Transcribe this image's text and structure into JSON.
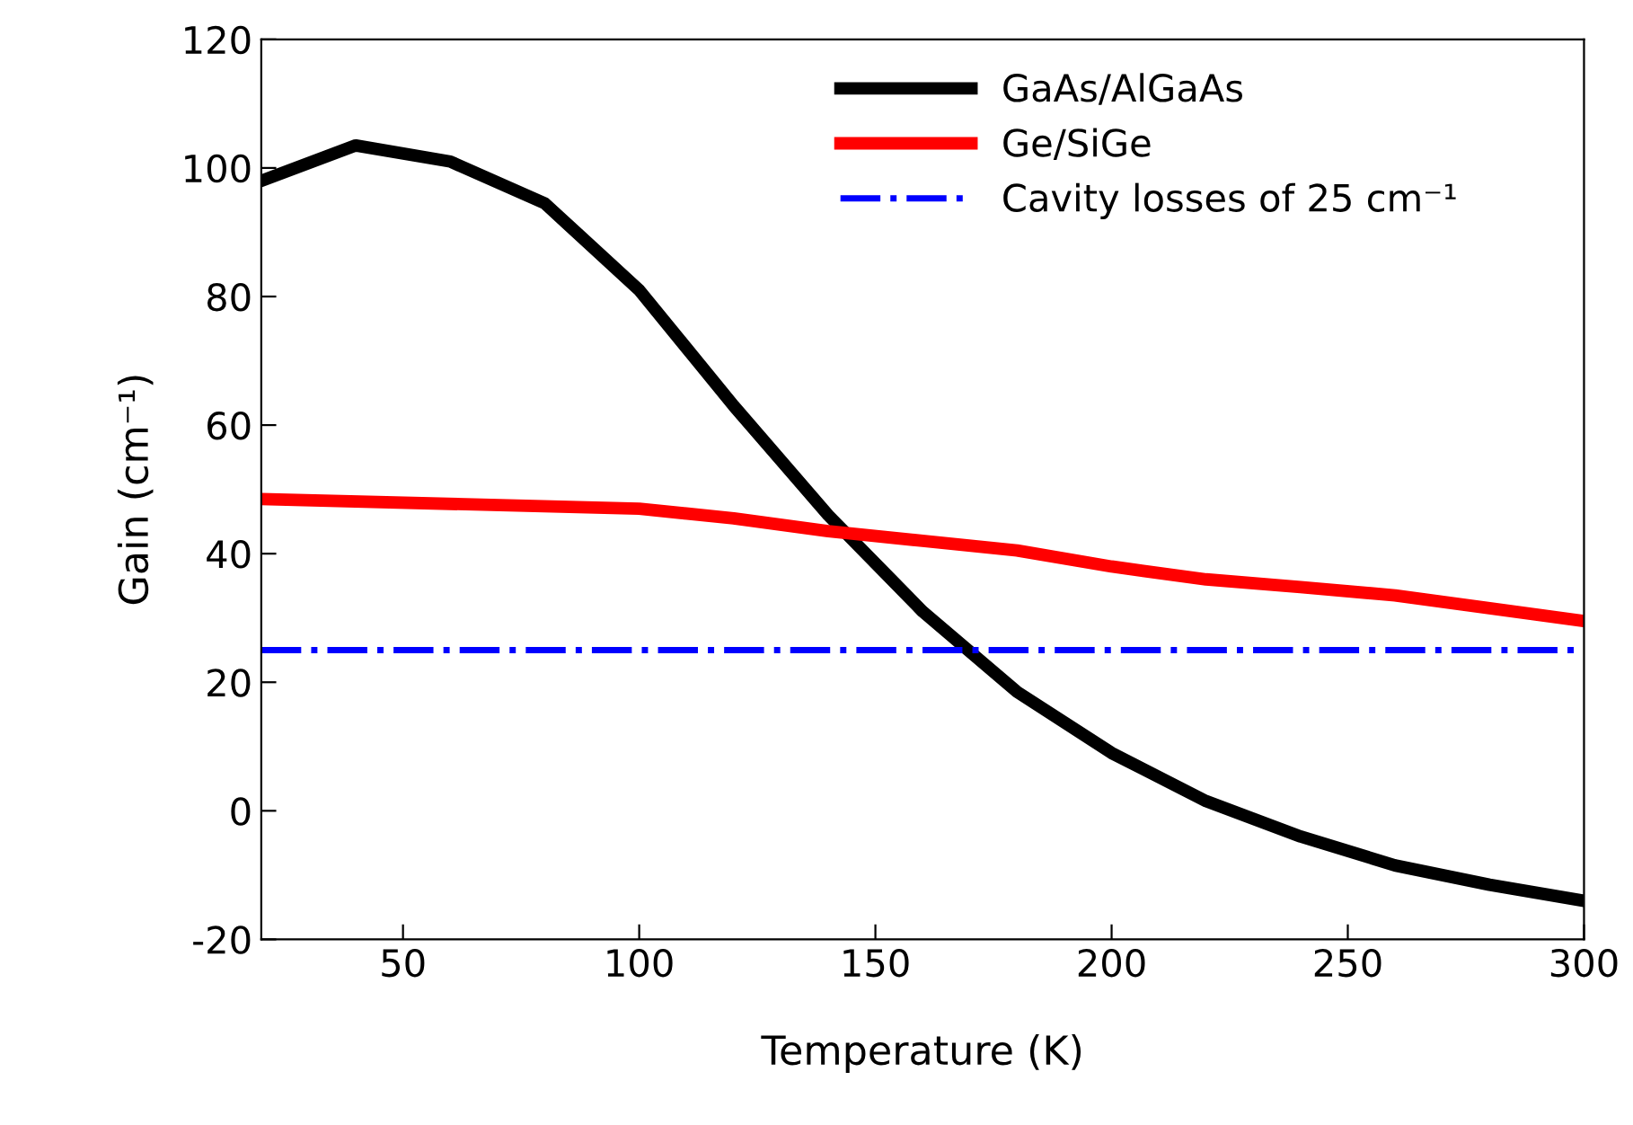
{
  "chart_data": {
    "type": "line",
    "xlabel": "Temperature (K)",
    "ylabel": "Gain (cm⁻¹)",
    "xlim": [
      20,
      300
    ],
    "xticks": [
      50,
      100,
      150,
      200,
      250,
      300
    ],
    "ylim": [
      -20,
      120
    ],
    "yticks": [
      -20,
      0,
      20,
      40,
      60,
      80,
      100,
      120
    ],
    "grid": false,
    "legend": "top right",
    "marker": "none",
    "series": [
      {
        "name": "GaAs/AlGaAs",
        "color": "#000000",
        "line_style": "solid",
        "x": [
          20,
          40,
          60,
          80,
          100,
          120,
          140,
          160,
          180,
          200,
          220,
          240,
          260,
          280,
          300
        ],
        "values": [
          98,
          103.5,
          101,
          94.5,
          81,
          63,
          46,
          31,
          18.5,
          9,
          1.5,
          -4,
          -8.5,
          -11.5,
          -14
        ]
      },
      {
        "name": "Ge/SiGe",
        "color": "#ff0000",
        "line_style": "solid",
        "x": [
          20,
          100,
          120,
          140,
          160,
          180,
          200,
          220,
          240,
          260,
          280,
          300
        ],
        "values": [
          48.5,
          47,
          45.5,
          43.5,
          42,
          40.5,
          38,
          36,
          34.8,
          33.5,
          31.5,
          29.5
        ]
      },
      {
        "name": "Cavity losses of 25 cm⁻¹",
        "color": "#0000ff",
        "line_style": "dashdot",
        "x": [
          20,
          300
        ],
        "values": [
          25,
          25
        ]
      }
    ]
  }
}
